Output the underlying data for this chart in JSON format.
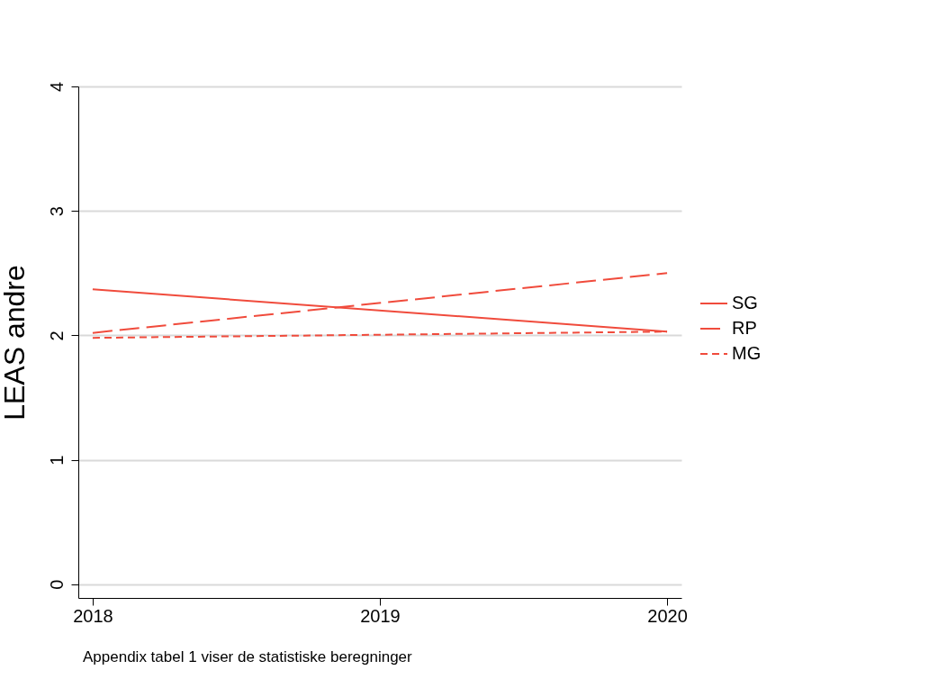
{
  "chart_data": {
    "type": "line",
    "ylabel": "LEAS andre",
    "x": [
      2018,
      2020
    ],
    "xlim": [
      2017.95,
      2020.05
    ],
    "xticks": [
      2018,
      2019,
      2020
    ],
    "ylim": [
      -0.11,
      4
    ],
    "yticks": [
      0,
      1,
      2,
      3,
      4
    ],
    "grid": "y",
    "legend": "right",
    "annotations": [
      "Appendix tabel 1 viser de statistiske beregninger"
    ],
    "series": [
      {
        "name": "SG",
        "color": "#f04b3c",
        "line_style": "solid",
        "values": [
          2.37,
          2.03
        ]
      },
      {
        "name": "RP",
        "color": "#f04b3c",
        "line_style": "dashed",
        "values": [
          2.02,
          2.5
        ]
      },
      {
        "name": "MG",
        "color": "#f04b3c",
        "line_style": "dotted",
        "values": [
          1.98,
          2.03
        ]
      }
    ]
  }
}
